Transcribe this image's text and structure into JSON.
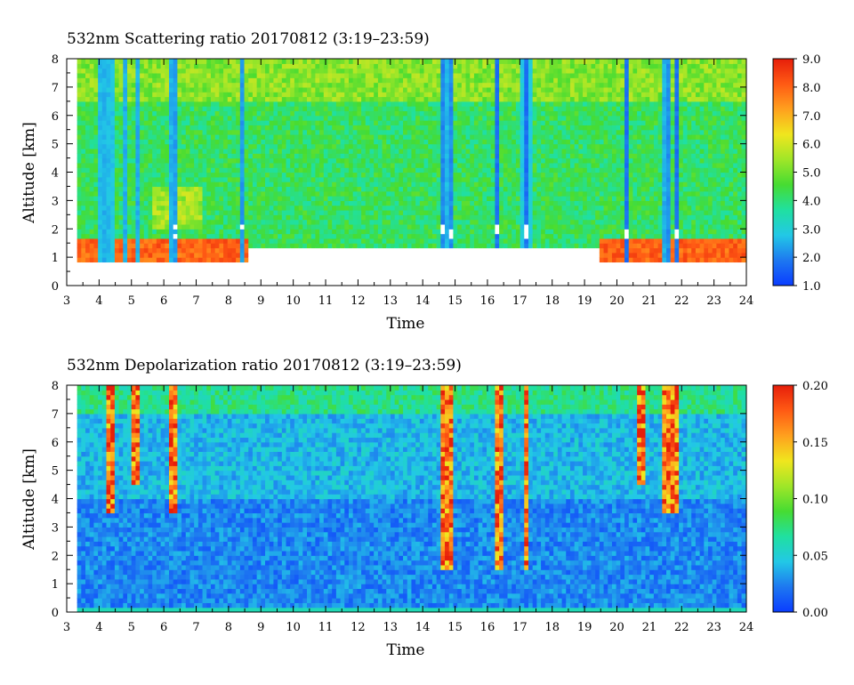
{
  "chart_data": [
    {
      "type": "heatmap",
      "title": "532nm Scattering ratio  20170812 (3:19–23:59)",
      "xlabel": "Time",
      "ylabel": "Altitude [km]",
      "xlim": [
        3,
        24
      ],
      "ylim": [
        0,
        8
      ],
      "x_ticks": [
        3,
        4,
        5,
        6,
        7,
        8,
        9,
        10,
        11,
        12,
        13,
        14,
        15,
        16,
        17,
        18,
        19,
        20,
        21,
        22,
        23,
        24
      ],
      "y_ticks": [
        0,
        1,
        2,
        3,
        4,
        5,
        6,
        7,
        8
      ],
      "colorbar": {
        "range": [
          1.0,
          9.0
        ],
        "ticks": [
          "1.0",
          "2.0",
          "3.0",
          "4.0",
          "5.0",
          "6.0",
          "7.0",
          "8.0",
          "9.0"
        ],
        "colormap": [
          "#0a3cff",
          "#1e78f0",
          "#22c8e6",
          "#20e0a0",
          "#46dc32",
          "#a0e628",
          "#f0e61e",
          "#ffa01e",
          "#ff5a14",
          "#e61e0a"
        ]
      },
      "data_start_hour": 3.32,
      "data_end_hour": 23.98,
      "background_value": 4.2,
      "cloud_columns": [
        {
          "t": 4.1,
          "w": 0.08
        },
        {
          "t": 4.35,
          "w": 0.07
        },
        {
          "t": 4.85,
          "w": 0.06
        },
        {
          "t": 5.15,
          "w": 0.06
        },
        {
          "t": 6.3,
          "w": 0.1
        },
        {
          "t": 8.45,
          "w": 0.06
        },
        {
          "t": 10.05,
          "w": 0.04
        },
        {
          "t": 14.65,
          "w": 0.12
        },
        {
          "t": 14.85,
          "w": 0.08
        },
        {
          "t": 16.3,
          "w": 0.1
        },
        {
          "t": 17.2,
          "w": 0.12
        },
        {
          "t": 20.3,
          "w": 0.06
        },
        {
          "t": 20.75,
          "w": 0.05
        },
        {
          "t": 21.55,
          "w": 0.12
        },
        {
          "t": 21.85,
          "w": 0.1
        }
      ]
    },
    {
      "type": "heatmap",
      "title": "532nm Depolarization ratio  20170812 (3:19–23:59)",
      "xlabel": "Time",
      "ylabel": "Altitude [km]",
      "xlim": [
        3,
        24
      ],
      "ylim": [
        0,
        8
      ],
      "x_ticks": [
        3,
        4,
        5,
        6,
        7,
        8,
        9,
        10,
        11,
        12,
        13,
        14,
        15,
        16,
        17,
        18,
        19,
        20,
        21,
        22,
        23,
        24
      ],
      "y_ticks": [
        0,
        1,
        2,
        3,
        4,
        5,
        6,
        7,
        8
      ],
      "colorbar": {
        "range": [
          0.0,
          0.2
        ],
        "ticks": [
          "0.00",
          "0.05",
          "0.10",
          "0.15",
          "0.20"
        ],
        "colormap": [
          "#0a3cff",
          "#1e78f0",
          "#22c8e6",
          "#20e0a0",
          "#46dc32",
          "#a0e628",
          "#f0e61e",
          "#ffa01e",
          "#ff5a14",
          "#e61e0a"
        ]
      },
      "data_start_hour": 3.32,
      "data_end_hour": 23.98,
      "background_value": 0.02,
      "high_depol_columns": [
        {
          "t": 4.35,
          "w": 0.1,
          "bottom": 3.5
        },
        {
          "t": 5.15,
          "w": 0.08,
          "bottom": 4.5
        },
        {
          "t": 6.3,
          "w": 0.1,
          "bottom": 3.5
        },
        {
          "t": 14.75,
          "w": 0.15,
          "bottom": 1.5
        },
        {
          "t": 16.35,
          "w": 0.12,
          "bottom": 1.5
        },
        {
          "t": 17.2,
          "w": 0.1,
          "bottom": 1.5
        },
        {
          "t": 20.75,
          "w": 0.08,
          "bottom": 4.5
        },
        {
          "t": 21.7,
          "w": 0.2,
          "bottom": 3.5
        }
      ]
    }
  ]
}
